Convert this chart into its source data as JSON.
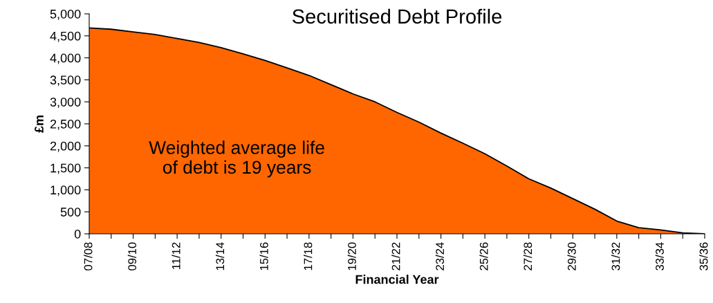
{
  "chart_data": {
    "type": "area",
    "title": "Securitised Debt Profile",
    "xlabel": "Financial Year",
    "ylabel": "£m",
    "categories": [
      "07/08",
      null,
      "09/10",
      null,
      "11/12",
      null,
      "13/14",
      null,
      "15/16",
      null,
      "17/18",
      null,
      "19/20",
      null,
      "21/22",
      null,
      "23/24",
      null,
      "25/26",
      null,
      "27/28",
      null,
      "29/30",
      null,
      "31/32",
      null,
      "33/34",
      null,
      "35/36"
    ],
    "series": [
      {
        "color": "#ff6600",
        "values": [
          4680,
          4650,
          4590,
          4530,
          4440,
          4350,
          4230,
          4090,
          3940,
          3770,
          3600,
          3390,
          3180,
          3000,
          2760,
          2540,
          2290,
          2060,
          1820,
          1540,
          1250,
          1040,
          800,
          560,
          290,
          140,
          90,
          20,
          0
        ]
      }
    ],
    "ylim": [
      0,
      5000
    ],
    "yticks": [
      {
        "value": 0,
        "label": "0"
      },
      {
        "value": 500,
        "label": "500"
      },
      {
        "value": 1000,
        "label": "1,000"
      },
      {
        "value": 1500,
        "label": "1,500"
      },
      {
        "value": 2000,
        "label": "2,000"
      },
      {
        "value": 2500,
        "label": "2,500"
      },
      {
        "value": 3000,
        "label": "3,000"
      },
      {
        "value": 3500,
        "label": "3,500"
      },
      {
        "value": 4000,
        "label": "4,000"
      },
      {
        "value": 4500,
        "label": "4,500"
      },
      {
        "value": 5000,
        "label": "5,000"
      }
    ],
    "annotations": [
      "Weighted average life\nof debt is 19 years"
    ],
    "grid": false,
    "legend": false
  }
}
